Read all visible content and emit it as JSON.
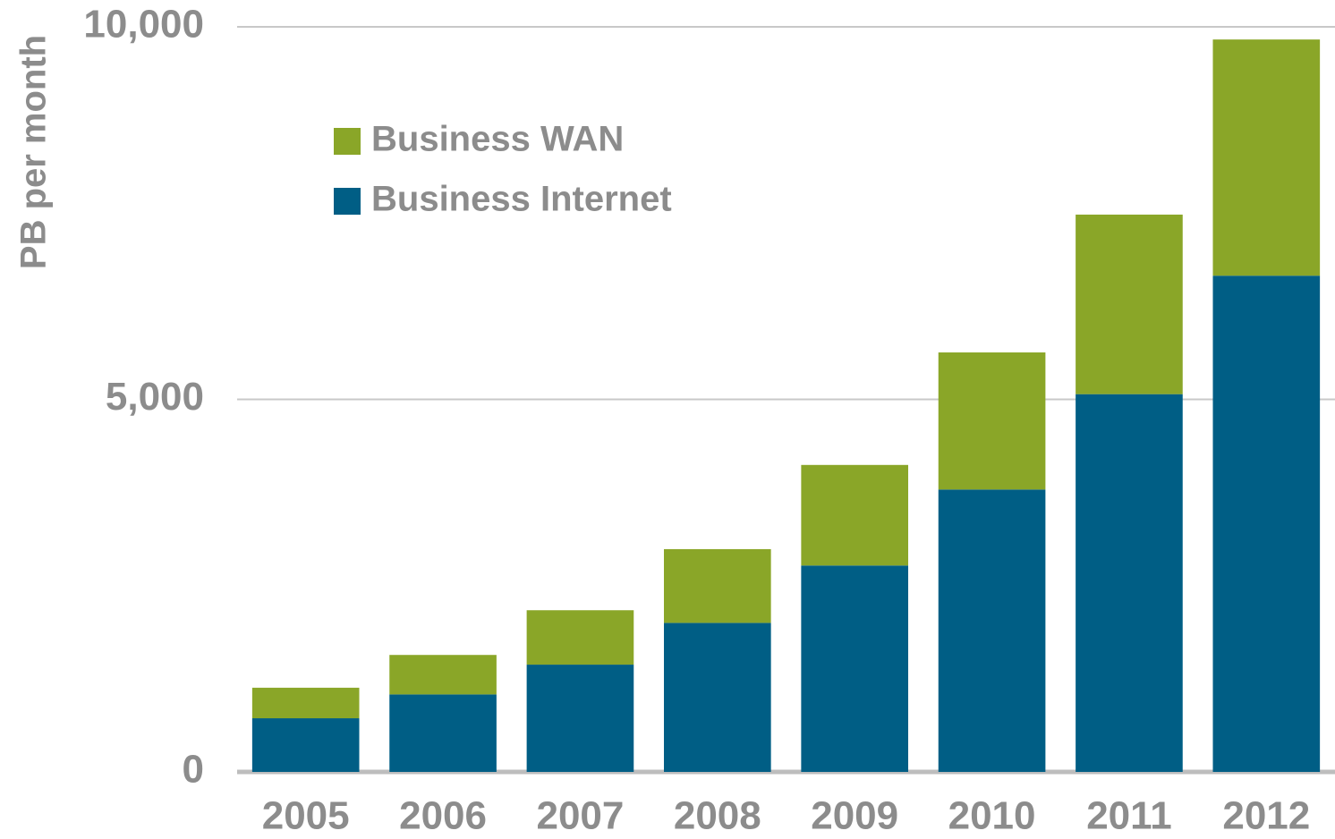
{
  "chart_data": {
    "type": "stacked_bar",
    "ylabel": "PB per month",
    "categories": [
      "2005",
      "2006",
      "2007",
      "2008",
      "2009",
      "2010",
      "2011",
      "2012"
    ],
    "series": [
      {
        "name": "Business Internet",
        "color": "#005e85",
        "values": [
          720,
          1040,
          1440,
          2000,
          2770,
          3790,
          5070,
          6660
        ]
      },
      {
        "name": "Business WAN",
        "color": "#8aa628",
        "values": [
          410,
          530,
          730,
          990,
          1350,
          1840,
          2410,
          3170
        ]
      }
    ],
    "ylim": [
      0,
      10000
    ],
    "yticks": [
      0,
      {
        "value": 5000,
        "label": "5,000"
      },
      {
        "value": 10000,
        "label": "10,000"
      }
    ],
    "grid": true,
    "legend": "upper left"
  }
}
